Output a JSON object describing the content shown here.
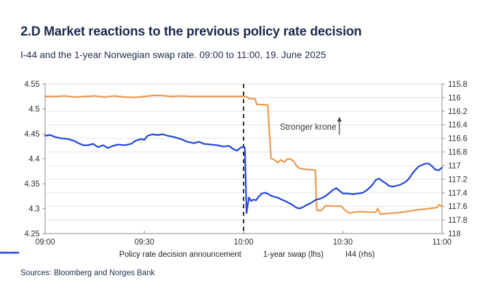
{
  "header": {
    "title": "2.D Market reactions to the previous policy rate decision",
    "subtitle": "I-44 and the 1-year Norwegian swap rate. 09:00 to 11:00, 19. June 2025"
  },
  "footer": {
    "sources": "Sources: Bloomberg and Norges Bank"
  },
  "colors": {
    "navy": "#1B2A4E",
    "orange": "#EB9A52",
    "blue": "#2247DC",
    "grid": "#E4E4E4",
    "frame": "#8A8A8A",
    "top_border": "#D9D9D9",
    "event_line": "#111111",
    "annotation": "#3C3C3C",
    "axis_text": "#2b2b2b"
  },
  "chart_data": {
    "type": "line",
    "title": "2.D Market reactions to the previous policy rate decision",
    "subtitle": "I-44 and the 1-year Norwegian swap rate. 09:00 to 11:00, 19. June 2025",
    "x_axis": {
      "tick_labels": [
        "09:00",
        "09:30",
        "10:00",
        "10:30",
        "11:00"
      ],
      "tick_minutes": [
        0,
        30,
        60,
        90,
        120
      ],
      "range_minutes": [
        0,
        120
      ]
    },
    "left_axis": {
      "min": 4.25,
      "max": 4.55,
      "tick_values": [
        4.55,
        4.5,
        4.45,
        4.4,
        4.35,
        4.3,
        4.25
      ],
      "tick_labels": [
        "4.55",
        "4.5",
        "4.45",
        "4.4",
        "4.35",
        "4.3",
        "4.25"
      ]
    },
    "right_axis": {
      "min": 115.8,
      "max": 118,
      "direction": "inverted (115.8 top, 118 bottom)",
      "tick_values": [
        115.8,
        116,
        116.2,
        116.4,
        116.6,
        116.8,
        117,
        117.2,
        117.4,
        117.6,
        117.8,
        118
      ],
      "tick_labels": [
        "115.8",
        "116",
        "116.2",
        "116.4",
        "116.6",
        "116.8",
        "117",
        "117.2",
        "117.4",
        "117.6",
        "117.8",
        "118"
      ]
    },
    "grid": "horizontal gridlines at right-axis 0.2 steps",
    "event_line": {
      "at_minutes": 60,
      "time": "10:00",
      "label": "Policy rate decision announcement",
      "style": "dashed-black-vertical"
    },
    "annotation": {
      "text": "Stronger krone",
      "icon": "up-arrow"
    },
    "legend_position": "bottom-center",
    "series": [
      {
        "name": "1-year swap (lhs)",
        "axis": "left",
        "color": "#EB9A52",
        "points": [
          [
            0,
            4.525
          ],
          [
            3,
            4.525
          ],
          [
            6,
            4.526
          ],
          [
            9,
            4.524
          ],
          [
            12,
            4.525
          ],
          [
            15,
            4.526
          ],
          [
            18,
            4.524
          ],
          [
            21,
            4.526
          ],
          [
            24,
            4.524
          ],
          [
            27,
            4.523
          ],
          [
            30,
            4.525
          ],
          [
            33,
            4.527
          ],
          [
            35,
            4.527
          ],
          [
            38,
            4.525
          ],
          [
            41,
            4.526
          ],
          [
            44,
            4.525
          ],
          [
            48,
            4.525
          ],
          [
            52,
            4.525
          ],
          [
            56,
            4.525
          ],
          [
            60,
            4.525
          ],
          [
            61,
            4.524
          ],
          [
            61.5,
            4.521
          ],
          [
            63.5,
            4.52
          ],
          [
            64,
            4.509
          ],
          [
            67.3,
            4.508
          ],
          [
            68.3,
            4.401
          ],
          [
            69.3,
            4.398
          ],
          [
            70.3,
            4.392
          ],
          [
            71.3,
            4.398
          ],
          [
            72.3,
            4.393
          ],
          [
            73.3,
            4.4
          ],
          [
            74.3,
            4.399
          ],
          [
            75.2,
            4.395
          ],
          [
            76,
            4.386
          ],
          [
            76.8,
            4.381
          ],
          [
            78.5,
            4.379
          ],
          [
            80.5,
            4.378
          ],
          [
            81.7,
            4.377
          ],
          [
            82.1,
            4.297
          ],
          [
            83.5,
            4.296
          ],
          [
            84.8,
            4.306
          ],
          [
            87,
            4.305
          ],
          [
            89.5,
            4.305
          ],
          [
            91,
            4.295
          ],
          [
            92,
            4.291
          ],
          [
            93.5,
            4.293
          ],
          [
            95.5,
            4.294
          ],
          [
            98,
            4.293
          ],
          [
            100,
            4.293
          ],
          [
            100.6,
            4.3
          ],
          [
            101.4,
            4.289
          ],
          [
            103,
            4.29
          ],
          [
            105,
            4.291
          ],
          [
            107,
            4.292
          ],
          [
            109,
            4.294
          ],
          [
            111,
            4.296
          ],
          [
            113,
            4.298
          ],
          [
            115,
            4.299
          ],
          [
            117,
            4.301
          ],
          [
            118.4,
            4.302
          ],
          [
            119.1,
            4.308
          ],
          [
            120,
            4.304
          ]
        ]
      },
      {
        "name": "I44 (rhs)",
        "axis": "right",
        "color": "#2247DC",
        "points": [
          [
            0,
            116.56
          ],
          [
            1.5,
            116.55
          ],
          [
            3,
            116.58
          ],
          [
            5,
            116.6
          ],
          [
            7,
            116.61
          ],
          [
            9,
            116.64
          ],
          [
            10,
            116.67
          ],
          [
            11.5,
            116.7
          ],
          [
            13,
            116.7
          ],
          [
            14.5,
            116.68
          ],
          [
            16,
            116.73
          ],
          [
            17.5,
            116.7
          ],
          [
            19,
            116.74
          ],
          [
            20.5,
            116.71
          ],
          [
            22,
            116.69
          ],
          [
            24,
            116.7
          ],
          [
            26,
            116.68
          ],
          [
            27.5,
            116.63
          ],
          [
            29,
            116.61
          ],
          [
            30,
            116.62
          ],
          [
            31,
            116.56
          ],
          [
            32.5,
            116.54
          ],
          [
            34,
            116.55
          ],
          [
            35.5,
            116.54
          ],
          [
            37,
            116.56
          ],
          [
            39,
            116.58
          ],
          [
            41,
            116.61
          ],
          [
            43,
            116.65
          ],
          [
            45,
            116.67
          ],
          [
            46.5,
            116.65
          ],
          [
            48,
            116.68
          ],
          [
            50,
            116.69
          ],
          [
            52,
            116.7
          ],
          [
            54,
            116.72
          ],
          [
            55.5,
            116.71
          ],
          [
            57,
            116.76
          ],
          [
            58,
            116.78
          ],
          [
            59,
            116.74
          ],
          [
            60,
            116.72
          ],
          [
            60.4,
            116.74
          ],
          [
            60.9,
            117.7
          ],
          [
            61.6,
            117.47
          ],
          [
            62.3,
            117.52
          ],
          [
            63,
            117.5
          ],
          [
            63.8,
            117.51
          ],
          [
            64.5,
            117.46
          ],
          [
            65.5,
            117.41
          ],
          [
            66.3,
            117.4
          ],
          [
            67.2,
            117.41
          ],
          [
            68.2,
            117.44
          ],
          [
            69.2,
            117.46
          ],
          [
            70.2,
            117.47
          ],
          [
            71.5,
            117.5
          ],
          [
            73,
            117.53
          ],
          [
            74.5,
            117.57
          ],
          [
            76,
            117.62
          ],
          [
            77,
            117.63
          ],
          [
            78,
            117.61
          ],
          [
            79,
            117.58
          ],
          [
            80,
            117.56
          ],
          [
            81,
            117.53
          ],
          [
            82,
            117.5
          ],
          [
            83,
            117.49
          ],
          [
            84,
            117.47
          ],
          [
            85,
            117.44
          ],
          [
            86,
            117.4
          ],
          [
            87,
            117.36
          ],
          [
            88,
            117.33
          ],
          [
            89,
            117.37
          ],
          [
            90,
            117.41
          ],
          [
            91.5,
            117.41
          ],
          [
            93,
            117.42
          ],
          [
            94.5,
            117.41
          ],
          [
            96,
            117.4
          ],
          [
            97,
            117.37
          ],
          [
            98,
            117.33
          ],
          [
            99,
            117.28
          ],
          [
            100,
            117.21
          ],
          [
            101,
            117.19
          ],
          [
            102,
            117.23
          ],
          [
            103,
            117.26
          ],
          [
            104,
            117.3
          ],
          [
            105,
            117.31
          ],
          [
            106,
            117.3
          ],
          [
            107.5,
            117.28
          ],
          [
            109,
            117.24
          ],
          [
            110,
            117.19
          ],
          [
            111,
            117.12
          ],
          [
            112,
            117.06
          ],
          [
            113,
            117.01
          ],
          [
            114,
            116.99
          ],
          [
            115,
            116.97
          ],
          [
            116,
            116.97
          ],
          [
            117,
            117.01
          ],
          [
            118,
            117.06
          ],
          [
            119,
            117.07
          ],
          [
            120,
            117.03
          ]
        ]
      }
    ]
  }
}
